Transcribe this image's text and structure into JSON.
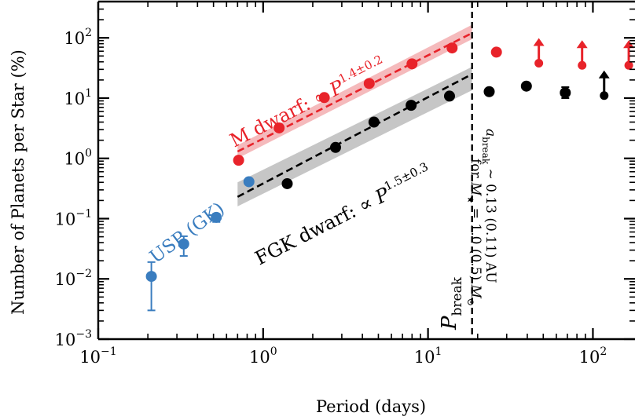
{
  "chart_data": {
    "type": "scatter",
    "xlabel": "Period (days)",
    "ylabel": "Number of Planets per Star (%)",
    "xscale": "log",
    "yscale": "log",
    "xlim": [
      0.1,
      180
    ],
    "ylim": [
      0.001,
      400
    ],
    "x_ticks": [
      {
        "value": 0.1,
        "base": "10",
        "exp": "−1"
      },
      {
        "value": 1,
        "base": "10",
        "exp": "0"
      },
      {
        "value": 10,
        "base": "10",
        "exp": "1"
      },
      {
        "value": 100,
        "base": "10",
        "exp": "2"
      }
    ],
    "y_ticks": [
      {
        "value": 0.001,
        "base": "10",
        "exp": "−3"
      },
      {
        "value": 0.01,
        "base": "10",
        "exp": "−2"
      },
      {
        "value": 0.1,
        "base": "10",
        "exp": "−1"
      },
      {
        "value": 1,
        "base": "10",
        "exp": "0"
      },
      {
        "value": 10,
        "base": "10",
        "exp": "1"
      },
      {
        "value": 100,
        "base": "10",
        "exp": "2"
      }
    ],
    "grid": false,
    "series": [
      {
        "key": "usp",
        "color": "#3a7dbf",
        "points": [
          {
            "x": 0.21,
            "y": 0.011,
            "ylo": 0.003,
            "yhi": 0.019
          },
          {
            "x": 0.33,
            "y": 0.038,
            "ylo": 0.024,
            "yhi": 0.051
          },
          {
            "x": 0.52,
            "y": 0.105,
            "ylo": 0.088,
            "yhi": 0.12
          },
          {
            "x": 0.82,
            "y": 0.41
          }
        ]
      },
      {
        "key": "m",
        "color": "#e8232a",
        "points": [
          {
            "x": 0.71,
            "y": 0.93
          },
          {
            "x": 1.25,
            "y": 3.2
          },
          {
            "x": 2.35,
            "y": 10.2
          },
          {
            "x": 4.4,
            "y": 17.5
          },
          {
            "x": 8.0,
            "y": 37
          },
          {
            "x": 14.0,
            "y": 68
          },
          {
            "x": 26.0,
            "y": 58
          }
        ],
        "lower_limits": [
          {
            "x": 47,
            "y": 38
          },
          {
            "x": 86,
            "y": 35
          },
          {
            "x": 165,
            "y": 35
          }
        ]
      },
      {
        "key": "fgk",
        "color": "#000000",
        "points": [
          {
            "x": 1.4,
            "y": 0.38
          },
          {
            "x": 2.75,
            "y": 1.52
          },
          {
            "x": 4.7,
            "y": 4.0
          },
          {
            "x": 7.9,
            "y": 7.6
          },
          {
            "x": 13.5,
            "y": 10.8
          },
          {
            "x": 23.5,
            "y": 12.8
          },
          {
            "x": 39.5,
            "y": 15.8
          },
          {
            "x": 68,
            "y": 12.3,
            "ylo": 10.0,
            "yhi": 15.2
          }
        ],
        "lower_limits": [
          {
            "x": 117,
            "y": 11
          }
        ]
      }
    ],
    "fits": [
      {
        "key": "m_fit",
        "color": "#e8232a",
        "band_color": "#f2a3a6",
        "x_start": 0.7,
        "x_end": 18.5,
        "y_at_start": 1.3,
        "y_at_end": 120,
        "band_at_start": [
          1.0,
          1.65
        ],
        "band_at_end": [
          95,
          165
        ]
      },
      {
        "key": "fgk_fit",
        "color": "#000000",
        "band_color": "#b3b3b3",
        "x_start": 0.7,
        "x_end": 18.5,
        "y_at_start": 0.23,
        "y_at_end": 25,
        "band_at_start": [
          0.16,
          0.4
        ],
        "band_at_end": [
          13.5,
          33
        ]
      }
    ],
    "p_break": 18.5,
    "annotations": {
      "usp_label": "USP (GK)",
      "m_label_prefix": "M dwarf: ∝ ",
      "m_label_P": "P",
      "m_label_exp": "1.4±0.2",
      "fgk_label_prefix": "FGK dwarf: ∝ ",
      "fgk_label_P": "P",
      "fgk_label_exp": "1.5±0.3",
      "pbreak_P": "P",
      "pbreak_sub": "break",
      "abreak_line1_a": "a",
      "abreak_line1_sub": "break",
      "abreak_line1_rest": " ∼ 0.13 (0.11) AU",
      "abreak_line2_a": "for ",
      "abreak_line2_M": "M",
      "abreak_line2_star": "★",
      "abreak_line2_rest": " = 1.0 (0.5) ",
      "abreak_line2_sun": "M",
      "abreak_line2_sunsub": "⊙"
    }
  }
}
